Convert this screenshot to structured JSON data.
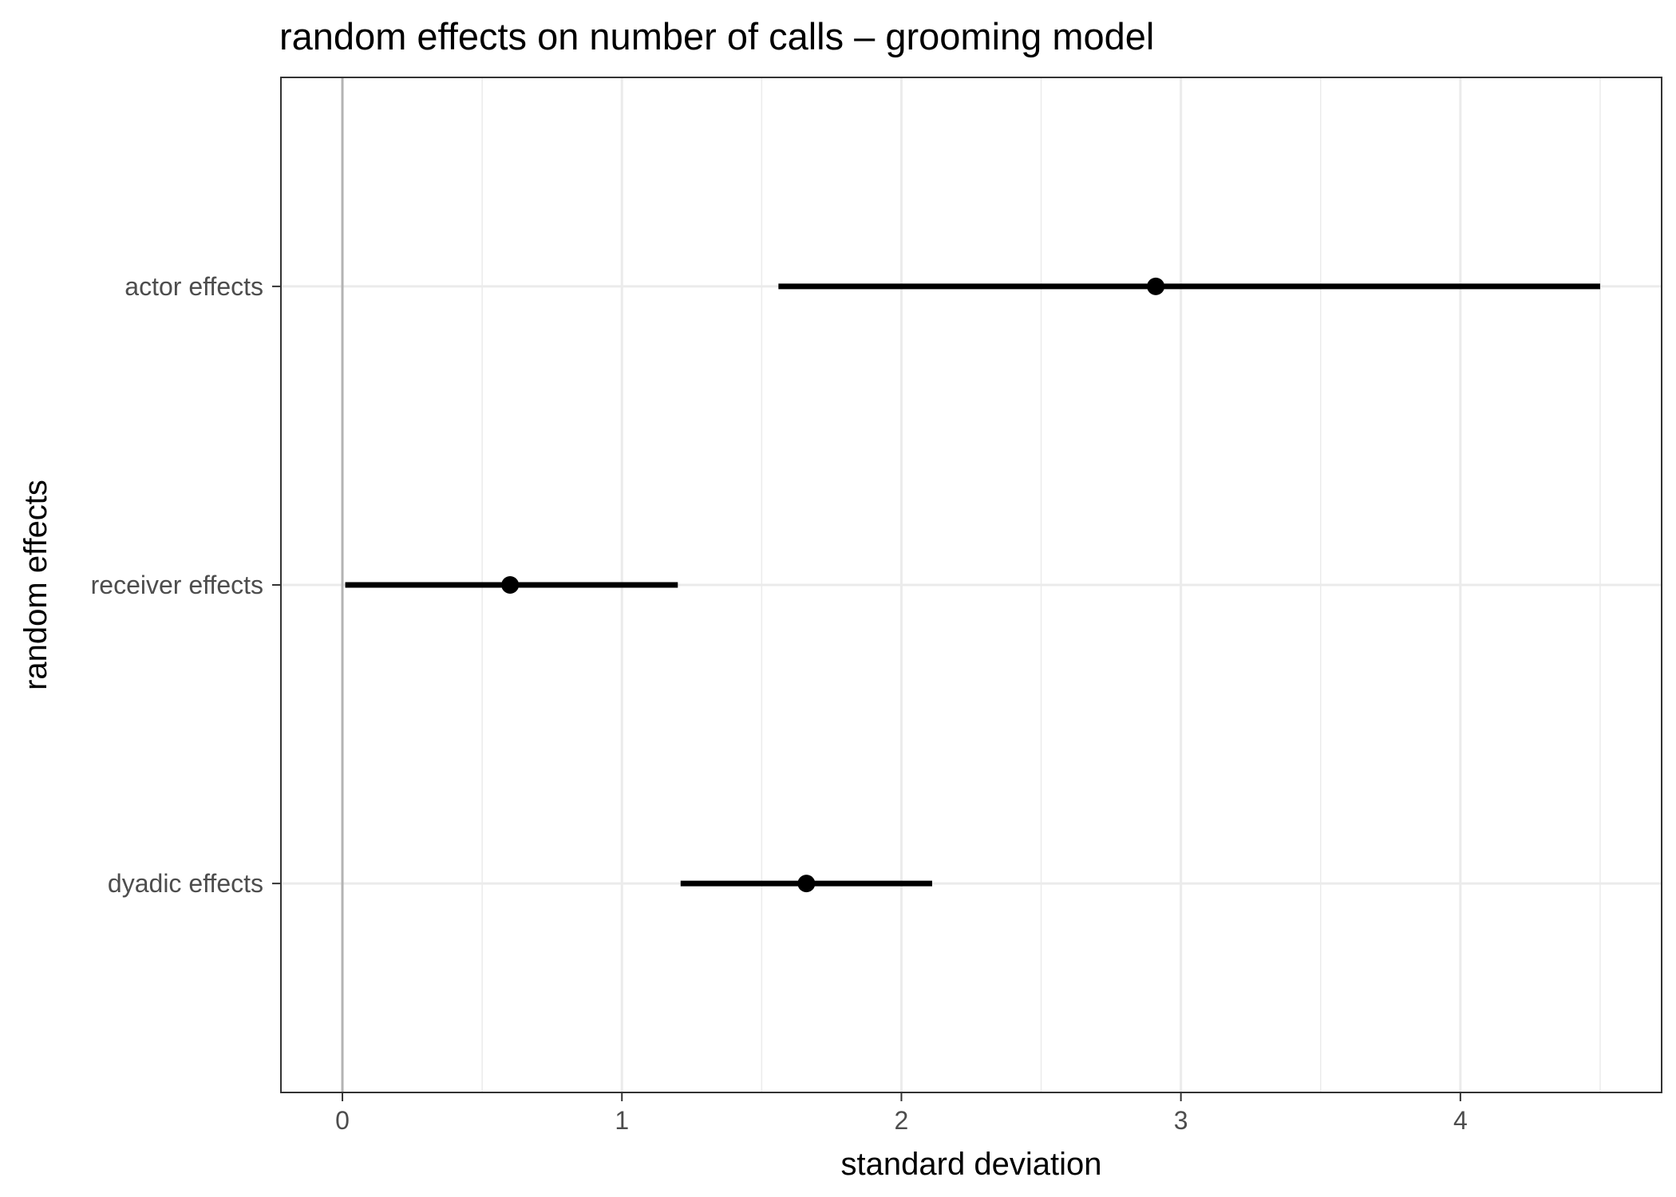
{
  "chart_data": {
    "type": "pointrange",
    "title": "random effects on number of calls – grooming model",
    "xlabel": "standard deviation",
    "ylabel": "random effects",
    "xlim": [
      -0.22,
      4.72
    ],
    "x_ticks": [
      "0",
      "1",
      "2",
      "3",
      "4"
    ],
    "x_tick_values": [
      0,
      1,
      2,
      3,
      4
    ],
    "x_minor_grid": [
      0.5,
      1.5,
      2.5,
      3.5,
      4.5
    ],
    "vline": 0,
    "grid": true,
    "categories": [
      "actor effects",
      "receiver effects",
      "dyadic effects"
    ],
    "estimates": [
      {
        "label": "actor effects",
        "estimate": 2.91,
        "lower": 1.56,
        "upper": 4.5
      },
      {
        "label": "receiver effects",
        "estimate": 0.6,
        "lower": 0.01,
        "upper": 1.2
      },
      {
        "label": "dyadic effects",
        "estimate": 1.66,
        "lower": 1.21,
        "upper": 2.11
      }
    ]
  }
}
